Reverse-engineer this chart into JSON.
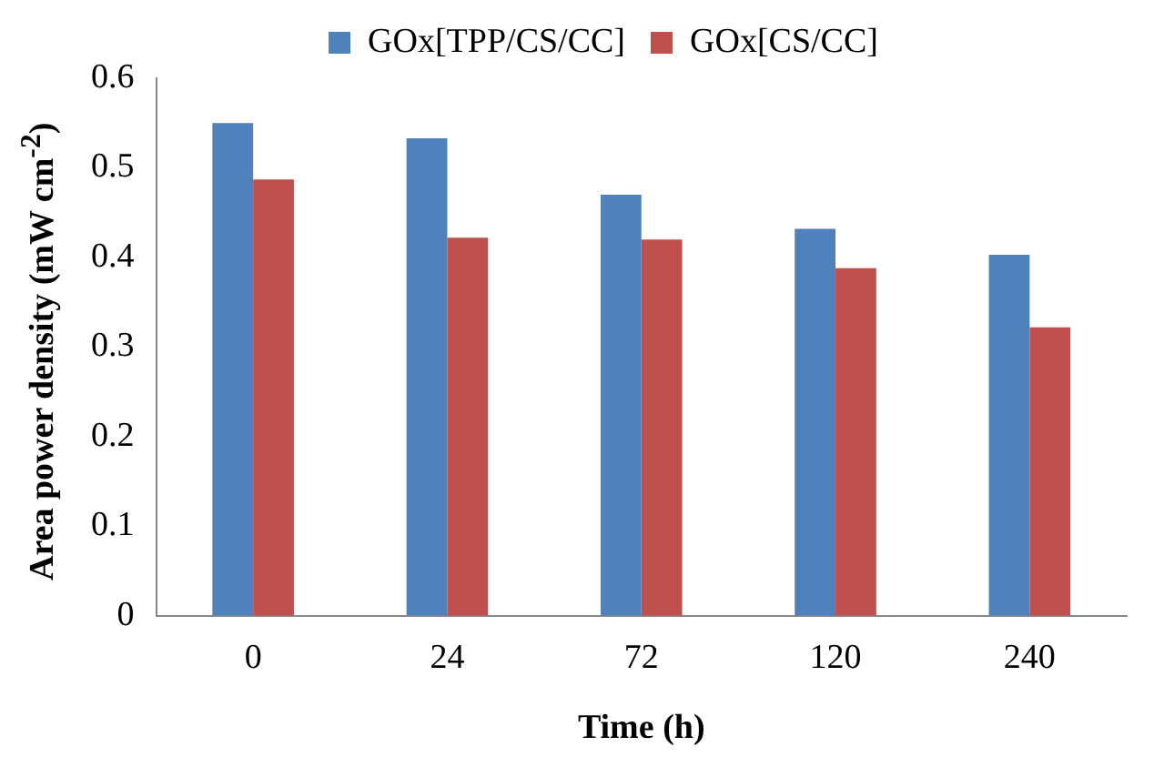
{
  "chart_data": {
    "type": "bar",
    "xlabel": "Time (h)",
    "ylabel": "Area power density (mW cm$^{-2}$)",
    "categories": [
      "0",
      "24",
      "72",
      "120",
      "240"
    ],
    "series": [
      {
        "name": "GOx[TPP/CS/CC]",
        "color": "#4f81bd",
        "values": [
          0.55,
          0.533,
          0.47,
          0.432,
          0.403
        ]
      },
      {
        "name": "GOx[CS/CC]",
        "color": "#c0504d",
        "values": [
          0.487,
          0.422,
          0.42,
          0.388,
          0.322
        ]
      }
    ],
    "ylim": [
      0,
      0.6
    ],
    "yticks": [
      0,
      0.1,
      0.2,
      0.3,
      0.4,
      0.5,
      0.6
    ],
    "grid": false,
    "legend": "top"
  }
}
